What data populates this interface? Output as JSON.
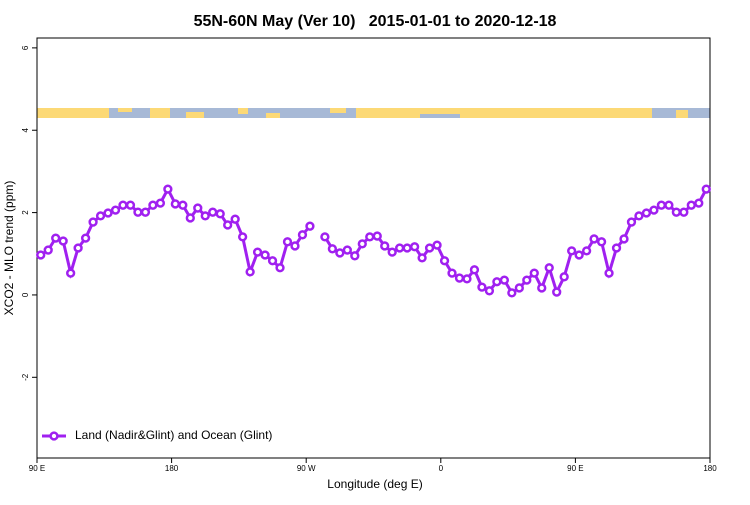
{
  "chart_data": {
    "type": "line",
    "title": "55N-60N May (Ver 10)   2015-01-01 to 2020-12-18",
    "xlabel": "Longitude (deg E)",
    "ylabel": "XCO2 - MLO trend (ppm)",
    "xlim": [
      90,
      540
    ],
    "ylim": [
      -3.96,
      6.24
    ],
    "xticks": [
      {
        "value": 90,
        "label": "90 E"
      },
      180,
      {
        "value": 270,
        "label": "90 W"
      },
      {
        "value": 360,
        "label": "0"
      },
      {
        "value": 450,
        "label": "90 E"
      },
      {
        "value": 540,
        "label": "180"
      }
    ],
    "yticks": [
      -2,
      0,
      2,
      4,
      6
    ],
    "legend": "bottom-left",
    "x": [
      92.5,
      97.5,
      102.5,
      107.5,
      112.5,
      117.5,
      122.5,
      127.5,
      132.5,
      137.5,
      142.5,
      147.5,
      152.5,
      157.5,
      162.5,
      167.5,
      172.5,
      177.5,
      182.5,
      187.5,
      192.5,
      197.5,
      202.5,
      207.5,
      212.5,
      217.5,
      222.5,
      227.5,
      232.5,
      237.5,
      242.5,
      247.5,
      252.5,
      257.5,
      262.5,
      267.5,
      272.5,
      277.5,
      282.5,
      287.5,
      292.5,
      297.5,
      302.5,
      307.5,
      312.5,
      317.5,
      322.5,
      327.5,
      332.5,
      337.5,
      342.5,
      347.5,
      352.5,
      357.5,
      362.5,
      367.5,
      372.5,
      377.5,
      382.5,
      387.5,
      392.5,
      397.5,
      402.5,
      407.5,
      412.5,
      417.5,
      422.5,
      427.5,
      432.5,
      437.5,
      442.5,
      447.5,
      452.5,
      457.5,
      462.5,
      467.5,
      472.5,
      477.5,
      482.5,
      487.5,
      492.5,
      497.5,
      502.5,
      507.5,
      512.5,
      517.5,
      522.5,
      527.5,
      532.5,
      537.5
    ],
    "series": [
      {
        "name": "Land (Nadir&Glint) and Ocean (Glint)",
        "color": "#a020f0",
        "values": [
          0.97,
          1.09,
          1.38,
          1.31,
          0.53,
          1.14,
          1.38,
          1.77,
          1.92,
          1.99,
          2.06,
          2.18,
          2.18,
          2.01,
          2.01,
          2.18,
          2.23,
          2.57,
          2.21,
          2.18,
          1.87,
          2.11,
          1.92,
          2.01,
          1.97,
          1.7,
          1.84,
          1.41,
          0.56,
          1.04,
          0.97,
          0.83,
          0.66,
          1.29,
          1.19,
          1.46,
          1.67,
          null,
          1.41,
          1.12,
          1.02,
          1.09,
          0.95,
          1.24,
          1.41,
          1.43,
          1.19,
          1.04,
          1.14,
          1.14,
          1.17,
          0.9,
          1.14,
          1.21,
          0.83,
          0.53,
          0.41,
          0.39,
          0.61,
          0.19,
          0.1,
          0.32,
          0.36,
          0.05,
          0.17,
          0.36,
          0.53,
          0.17,
          0.66,
          0.07,
          0.44,
          1.07,
          0.97,
          1.07,
          1.36,
          1.29,
          0.53,
          1.14,
          1.36,
          1.77,
          1.92,
          1.99,
          2.06,
          2.18,
          2.18,
          2.01,
          2.01,
          2.18,
          2.23,
          2.57
        ]
      }
    ]
  }
}
